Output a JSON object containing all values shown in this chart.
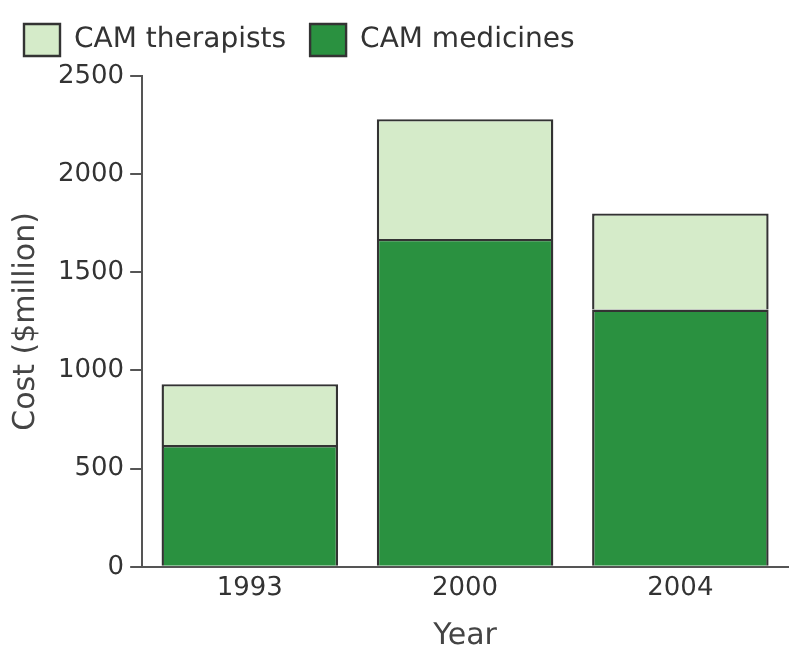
{
  "chart_data": {
    "type": "bar",
    "stacked": true,
    "xlabel": "Year",
    "ylabel": "Cost ($million)",
    "categories": [
      "1993",
      "2000",
      "2004"
    ],
    "series": [
      {
        "name": "CAM medicines",
        "color": "#2a9140",
        "values": [
          620,
          1670,
          1310
        ]
      },
      {
        "name": "CAM therapists",
        "color": "#d5ebc9",
        "values": [
          310,
          610,
          490
        ]
      }
    ],
    "ylim": [
      0,
      2500
    ],
    "yticks": [
      0,
      500,
      1000,
      1500,
      2000,
      2500
    ],
    "grid": false,
    "legend": "top"
  }
}
